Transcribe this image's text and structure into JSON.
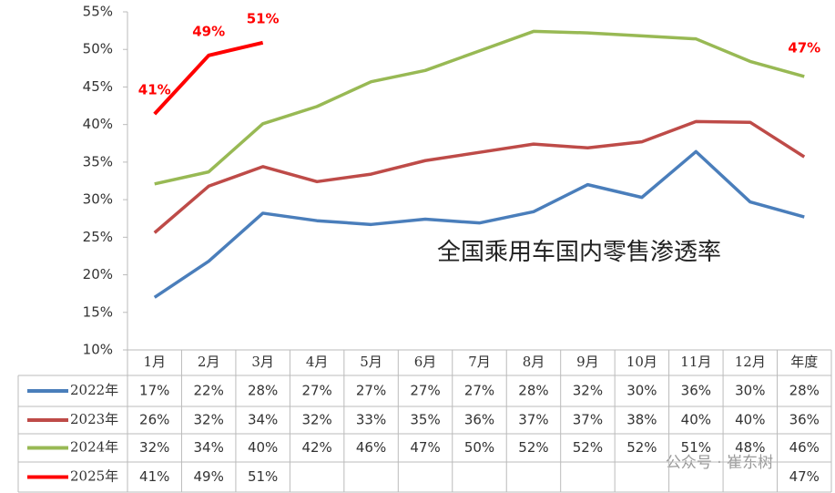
{
  "chart_data": {
    "type": "line",
    "annotations": [
      "全国乘用车国内零售渗透率"
    ],
    "watermark": "公众号 · 崔东树",
    "categories": [
      "1月",
      "2月",
      "3月",
      "4月",
      "5月",
      "6月",
      "7月",
      "8月",
      "9月",
      "10月",
      "11月",
      "12月",
      "年度"
    ],
    "ylim": [
      10,
      55
    ],
    "yticks": [
      {
        "value": 10,
        "label": "10%"
      },
      {
        "value": 15,
        "label": "15%"
      },
      {
        "value": 20,
        "label": "20%"
      },
      {
        "value": 25,
        "label": "25%"
      },
      {
        "value": 30,
        "label": "30%"
      },
      {
        "value": 35,
        "label": "35%"
      },
      {
        "value": 40,
        "label": "40%"
      },
      {
        "value": 45,
        "label": "45%"
      },
      {
        "value": 50,
        "label": "50%"
      },
      {
        "value": 55,
        "label": "55%"
      }
    ],
    "grid": false,
    "series": [
      {
        "name": "2022年",
        "color": "#4a7ebb",
        "values": [
          17.0,
          21.8,
          28.2,
          27.2,
          26.7,
          27.4,
          26.9,
          28.4,
          32.0,
          30.3,
          36.4,
          29.7,
          27.7
        ],
        "value_labels": [
          "17%",
          "22%",
          "28%",
          "27%",
          "27%",
          "27%",
          "27%",
          "28%",
          "32%",
          "30%",
          "36%",
          "30%",
          "28%"
        ]
      },
      {
        "name": "2023年",
        "color": "#be4b48",
        "values": [
          25.6,
          31.8,
          34.4,
          32.4,
          33.4,
          35.2,
          36.3,
          37.4,
          36.9,
          37.7,
          40.4,
          40.3,
          35.7
        ],
        "value_labels": [
          "26%",
          "32%",
          "34%",
          "32%",
          "33%",
          "35%",
          "36%",
          "37%",
          "37%",
          "38%",
          "40%",
          "40%",
          "36%"
        ]
      },
      {
        "name": "2024年",
        "color": "#98b954",
        "values": [
          32.1,
          33.7,
          40.1,
          42.4,
          45.7,
          47.2,
          49.8,
          52.4,
          52.2,
          51.8,
          51.4,
          48.4,
          46.4
        ],
        "value_labels": [
          "32%",
          "34%",
          "40%",
          "42%",
          "46%",
          "47%",
          "50%",
          "52%",
          "52%",
          "52%",
          "51%",
          "48%",
          "46%"
        ]
      },
      {
        "name": "2025年",
        "color": "#ff0000",
        "values": [
          41.4,
          49.2,
          50.9,
          null,
          null,
          null,
          null,
          null,
          null,
          null,
          null,
          null,
          47
        ],
        "value_labels": [
          "41%",
          "49%",
          "51%",
          null,
          null,
          null,
          null,
          null,
          null,
          null,
          null,
          null,
          "47%"
        ]
      }
    ]
  }
}
